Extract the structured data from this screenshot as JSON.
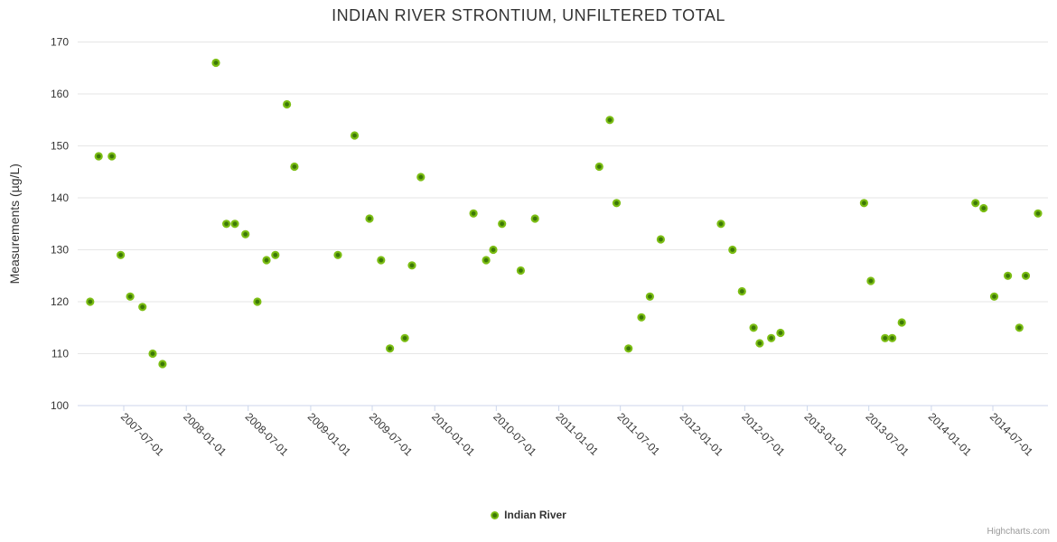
{
  "credit": "Highcharts.com",
  "colors": {
    "series": "#7cbe14",
    "marker_center": "#3c7806",
    "grid": "#e6e6e6",
    "axis": "#ccd6eb",
    "text": "#333333",
    "credit_text": "#999999",
    "background": "#ffffff"
  },
  "chart_data": {
    "type": "scatter",
    "title": "INDIAN RIVER STRONTIUM, UNFILTERED TOTAL",
    "xlabel": "",
    "ylabel": "Measurements (µg/L)",
    "ylim": [
      100,
      170
    ],
    "y_ticks": [
      100,
      110,
      120,
      130,
      140,
      150,
      160,
      170
    ],
    "x_ticks": [
      "2007-07-01",
      "2008-01-01",
      "2008-07-01",
      "2009-01-01",
      "2009-07-01",
      "2010-01-01",
      "2010-07-01",
      "2011-01-01",
      "2011-07-01",
      "2012-01-01",
      "2012-07-01",
      "2013-01-01",
      "2013-07-01",
      "2014-01-01",
      "2014-07-01"
    ],
    "grid": "horizontal",
    "legend_position": "bottom-center",
    "series": [
      {
        "name": "Indian River",
        "color": "#7cbe14",
        "points": [
          {
            "x": "2007-03-24",
            "y": 120
          },
          {
            "x": "2007-04-18",
            "y": 148
          },
          {
            "x": "2007-05-27",
            "y": 148
          },
          {
            "x": "2007-06-22",
            "y": 129
          },
          {
            "x": "2007-07-20",
            "y": 121
          },
          {
            "x": "2007-08-25",
            "y": 119
          },
          {
            "x": "2007-09-24",
            "y": 110
          },
          {
            "x": "2007-10-23",
            "y": 108
          },
          {
            "x": "2008-03-28",
            "y": 166
          },
          {
            "x": "2008-04-28",
            "y": 135
          },
          {
            "x": "2008-05-23",
            "y": 135
          },
          {
            "x": "2008-06-23",
            "y": 133
          },
          {
            "x": "2008-07-28",
            "y": 120
          },
          {
            "x": "2008-08-24",
            "y": 128
          },
          {
            "x": "2008-09-19",
            "y": 129
          },
          {
            "x": "2008-10-23",
            "y": 158
          },
          {
            "x": "2008-11-14",
            "y": 146
          },
          {
            "x": "2009-03-22",
            "y": 129
          },
          {
            "x": "2009-05-10",
            "y": 152
          },
          {
            "x": "2009-06-23",
            "y": 136
          },
          {
            "x": "2009-07-27",
            "y": 128
          },
          {
            "x": "2009-08-22",
            "y": 111
          },
          {
            "x": "2009-10-05",
            "y": 113
          },
          {
            "x": "2009-10-26",
            "y": 127
          },
          {
            "x": "2009-11-21",
            "y": 144
          },
          {
            "x": "2010-04-25",
            "y": 137
          },
          {
            "x": "2010-06-01",
            "y": 128
          },
          {
            "x": "2010-06-22",
            "y": 130
          },
          {
            "x": "2010-07-18",
            "y": 135
          },
          {
            "x": "2010-09-11",
            "y": 126
          },
          {
            "x": "2010-10-23",
            "y": 136
          },
          {
            "x": "2011-04-30",
            "y": 146
          },
          {
            "x": "2011-05-31",
            "y": 155
          },
          {
            "x": "2011-06-20",
            "y": 139
          },
          {
            "x": "2011-07-25",
            "y": 111
          },
          {
            "x": "2011-09-01",
            "y": 117
          },
          {
            "x": "2011-09-26",
            "y": 121
          },
          {
            "x": "2011-10-28",
            "y": 132
          },
          {
            "x": "2012-04-22",
            "y": 135
          },
          {
            "x": "2012-05-26",
            "y": 130
          },
          {
            "x": "2012-06-23",
            "y": 122
          },
          {
            "x": "2012-07-27",
            "y": 115
          },
          {
            "x": "2012-08-14",
            "y": 112
          },
          {
            "x": "2012-09-17",
            "y": 113
          },
          {
            "x": "2012-10-14",
            "y": 114
          },
          {
            "x": "2013-06-17",
            "y": 139
          },
          {
            "x": "2013-07-07",
            "y": 124
          },
          {
            "x": "2013-08-18",
            "y": 113
          },
          {
            "x": "2013-09-08",
            "y": 113
          },
          {
            "x": "2013-10-06",
            "y": 116
          },
          {
            "x": "2014-05-11",
            "y": 139
          },
          {
            "x": "2014-06-04",
            "y": 138
          },
          {
            "x": "2014-07-05",
            "y": 121
          },
          {
            "x": "2014-08-14",
            "y": 125
          },
          {
            "x": "2014-09-17",
            "y": 115
          },
          {
            "x": "2014-10-06",
            "y": 125
          },
          {
            "x": "2014-11-11",
            "y": 137
          }
        ]
      }
    ]
  }
}
